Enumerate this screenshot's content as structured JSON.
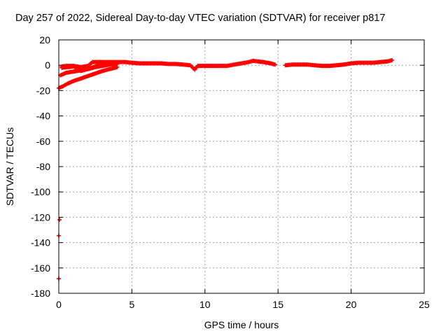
{
  "chart_data": {
    "type": "scatter",
    "title": "Day 257 of 2022, Sidereal Day-to-day VTEC variation (SDTVAR) for receiver p817",
    "xlabel": "GPS time / hours",
    "ylabel": "SDTVAR / TECUs",
    "xlim": [
      0,
      25
    ],
    "ylim": [
      -180,
      20
    ],
    "xticks": [
      "0",
      "5",
      "10",
      "15",
      "20",
      "25"
    ],
    "yticks": [
      "20",
      "0",
      "-20",
      "-40",
      "-60",
      "-80",
      "-100",
      "-120",
      "-140",
      "-160",
      "-180"
    ],
    "grid": true,
    "marker_color": "#ff0000",
    "series": [
      {
        "name": "SDTVAR",
        "points": [
          [
            0.0,
            -168.5
          ],
          [
            0.0,
            -134.5
          ],
          [
            0.05,
            -122.0
          ],
          [
            0.0,
            -18.0
          ],
          [
            0.3,
            -16.5
          ],
          [
            0.6,
            -14.5
          ],
          [
            1.0,
            -12.5
          ],
          [
            1.5,
            -10.5
          ],
          [
            2.0,
            -8.5
          ],
          [
            2.5,
            -6.5
          ],
          [
            3.0,
            -4.5
          ],
          [
            3.5,
            -3.0
          ],
          [
            4.0,
            -1.5
          ],
          [
            0.1,
            -8.0
          ],
          [
            0.5,
            -6.0
          ],
          [
            1.0,
            -5.0
          ],
          [
            1.5,
            -4.0
          ],
          [
            2.0,
            -3.0
          ],
          [
            2.5,
            -1.5
          ],
          [
            3.0,
            -0.5
          ],
          [
            3.5,
            0.5
          ],
          [
            4.0,
            1.0
          ],
          [
            0.2,
            -2.0
          ],
          [
            0.6,
            -1.5
          ],
          [
            1.0,
            -1.0
          ],
          [
            1.2,
            -2.0
          ],
          [
            1.5,
            -4.5
          ],
          [
            2.0,
            -3.0
          ],
          [
            2.5,
            -1.0
          ],
          [
            3.0,
            0.5
          ],
          [
            3.5,
            1.5
          ],
          [
            4.0,
            1.5
          ],
          [
            0.2,
            -1.0
          ],
          [
            0.5,
            -0.5
          ],
          [
            1.0,
            -0.5
          ],
          [
            1.5,
            -1.5
          ],
          [
            2.0,
            -0.5
          ],
          [
            2.3,
            2.5
          ],
          [
            2.6,
            2.5
          ],
          [
            3.0,
            2.5
          ],
          [
            3.5,
            2.5
          ],
          [
            4.0,
            2.5
          ],
          [
            4.5,
            2.5
          ],
          [
            5.0,
            2.0
          ],
          [
            5.5,
            1.5
          ],
          [
            6.0,
            1.5
          ],
          [
            6.5,
            1.5
          ],
          [
            7.0,
            1.5
          ],
          [
            7.5,
            1.0
          ],
          [
            8.0,
            1.0
          ],
          [
            8.5,
            0.5
          ],
          [
            9.0,
            0.0
          ],
          [
            9.3,
            -3.5
          ],
          [
            9.5,
            -0.5
          ],
          [
            10.0,
            -0.5
          ],
          [
            10.5,
            -0.5
          ],
          [
            11.0,
            -0.5
          ],
          [
            11.5,
            -0.5
          ],
          [
            12.0,
            0.5
          ],
          [
            12.5,
            1.5
          ],
          [
            13.0,
            2.5
          ],
          [
            13.3,
            3.5
          ],
          [
            13.6,
            3.0
          ],
          [
            14.0,
            2.5
          ],
          [
            14.5,
            1.5
          ],
          [
            14.8,
            0.5
          ],
          [
            15.5,
            0.0
          ],
          [
            16.0,
            0.5
          ],
          [
            16.5,
            0.5
          ],
          [
            17.0,
            0.5
          ],
          [
            17.5,
            0.0
          ],
          [
            18.0,
            -0.5
          ],
          [
            18.5,
            -0.5
          ],
          [
            19.0,
            0.0
          ],
          [
            19.5,
            0.5
          ],
          [
            20.0,
            1.5
          ],
          [
            20.5,
            2.0
          ],
          [
            21.0,
            2.0
          ],
          [
            21.5,
            2.0
          ],
          [
            22.0,
            2.5
          ],
          [
            22.5,
            3.0
          ],
          [
            22.8,
            4.0
          ]
        ]
      }
    ]
  }
}
